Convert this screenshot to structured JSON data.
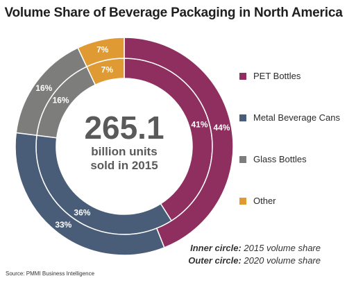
{
  "chart_data": {
    "type": "pie",
    "title": "Volume Share of Beverage Packaging in North America",
    "center": {
      "value": "265.1",
      "line1": "billion units",
      "line2": "sold in 2015"
    },
    "categories": [
      "PET Bottles",
      "Metal Beverage Cans",
      "Glass Bottles",
      "Other"
    ],
    "colors": [
      "#8e2f5f",
      "#4a5d78",
      "#7d7d7b",
      "#e09a34"
    ],
    "series": [
      {
        "name": "2015",
        "ring": "inner",
        "values": [
          41,
          36,
          16,
          7
        ],
        "labels": [
          "41%",
          "36%",
          "16%",
          "7%"
        ]
      },
      {
        "name": "2020",
        "ring": "outer",
        "values": [
          44,
          33,
          16,
          7
        ],
        "labels": [
          "44%",
          "33%",
          "16%",
          "7%"
        ]
      }
    ],
    "legend_position": "right",
    "notes": {
      "inner_key": "Inner circle:",
      "inner_text": "2015 volume share",
      "outer_key": "Outer circle:",
      "outer_text": "2020 volume share"
    },
    "source": "Source: PMMI Business Intelligence"
  }
}
